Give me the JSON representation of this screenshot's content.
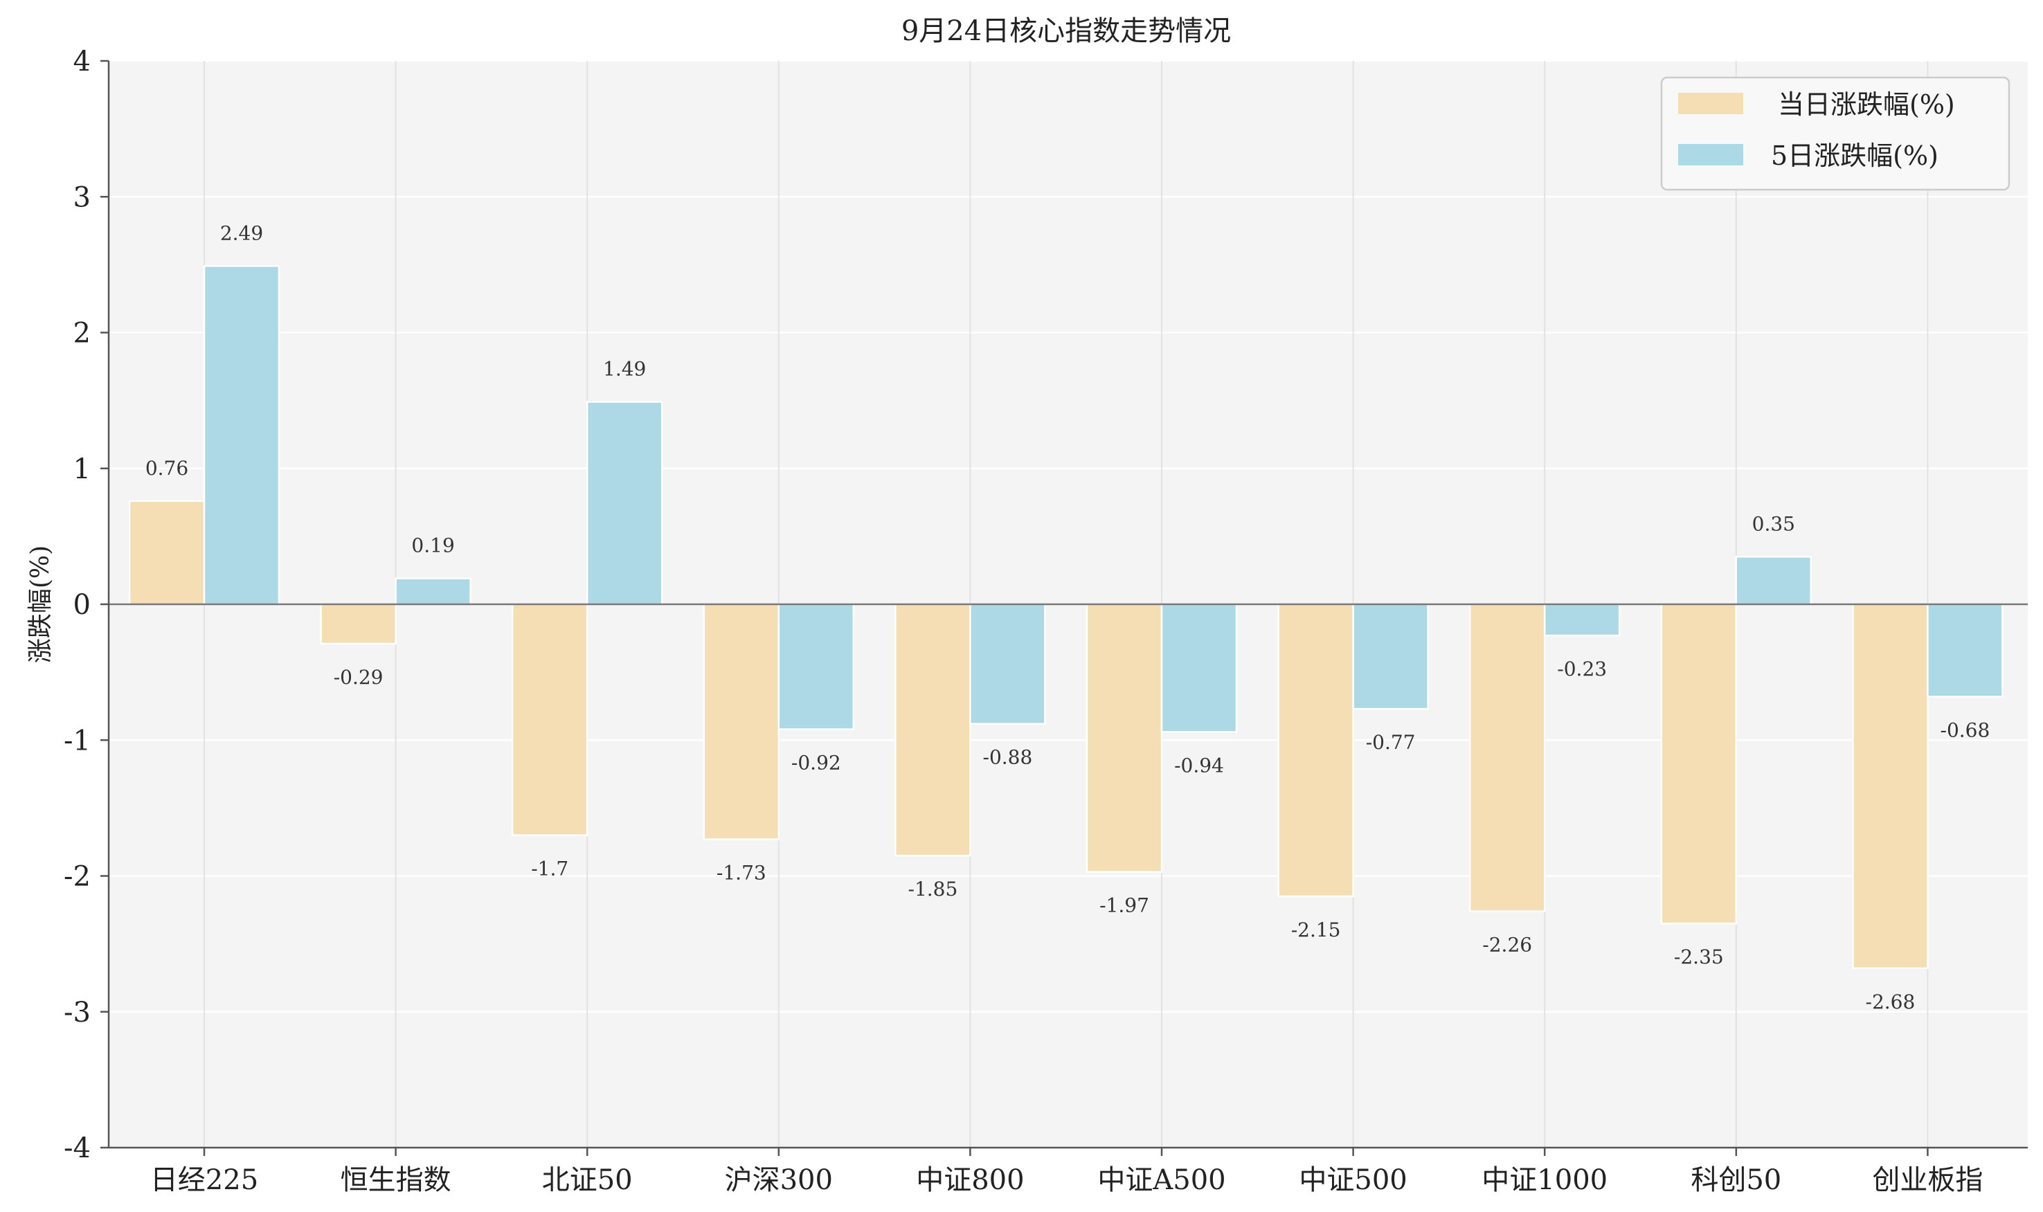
{
  "chart_data": {
    "type": "bar",
    "title": "9月24日核心指数走势情况",
    "xlabel": "",
    "ylabel": "涨跌幅(%)",
    "ylim": [
      -4,
      4
    ],
    "yticks": [
      "4",
      "3",
      "2",
      "1",
      "0",
      "-1",
      "-2",
      "-3",
      "-4"
    ],
    "grid": true,
    "legend_position": "top-right",
    "categories": [
      "日经225",
      "恒生指数",
      "北证50",
      "沪深300",
      "中证800",
      "中证A500",
      "中证500",
      "中证1000",
      "科创50",
      "创业板指"
    ],
    "series": [
      {
        "name": "当日涨跌幅(%)",
        "color": "#F5DEB3",
        "values": [
          0.76,
          -0.29,
          -1.7,
          -1.73,
          -1.85,
          -1.97,
          -2.15,
          -2.26,
          -2.35,
          -2.68
        ],
        "labels": [
          "0.76",
          "-0.29",
          "-1.7",
          "-1.73",
          "-1.85",
          "-1.97",
          "-2.15",
          "-2.26",
          "-2.35",
          "-2.68"
        ]
      },
      {
        "name": "5日涨跌幅(%)",
        "color": "#ADD8E6",
        "values": [
          2.49,
          0.19,
          1.49,
          -0.92,
          -0.88,
          -0.94,
          -0.77,
          -0.23,
          0.35,
          -0.68
        ],
        "labels": [
          "2.49",
          "0.19",
          "1.49",
          "-0.92",
          "-0.88",
          "-0.94",
          "-0.77",
          "-0.23",
          "0.35",
          "-0.68"
        ]
      }
    ]
  }
}
